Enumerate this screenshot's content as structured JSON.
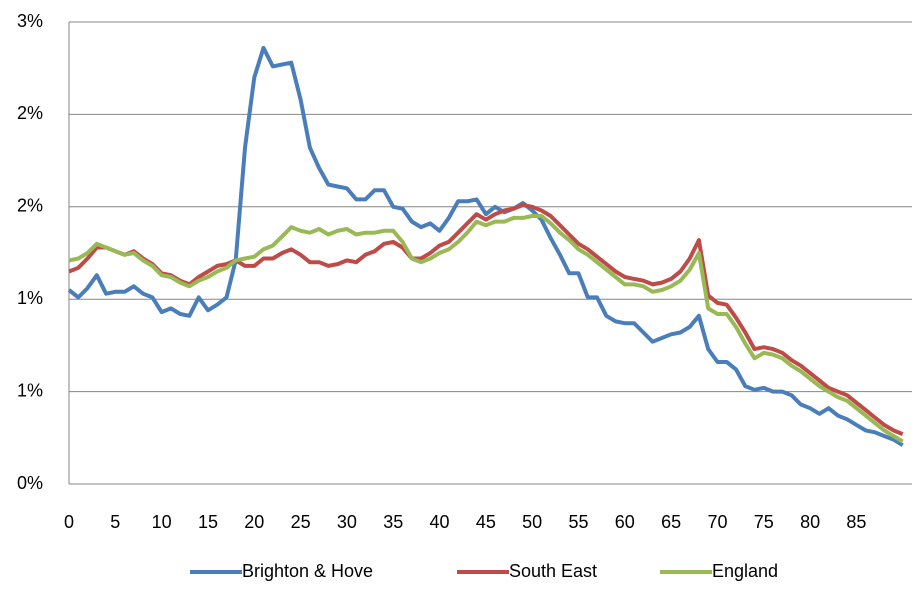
{
  "chart_data": {
    "type": "line",
    "x": [
      0,
      1,
      2,
      3,
      4,
      5,
      6,
      7,
      8,
      9,
      10,
      11,
      12,
      13,
      14,
      15,
      16,
      17,
      18,
      19,
      20,
      21,
      22,
      23,
      24,
      25,
      26,
      27,
      28,
      29,
      30,
      31,
      32,
      33,
      34,
      35,
      36,
      37,
      38,
      39,
      40,
      41,
      42,
      43,
      44,
      45,
      46,
      47,
      48,
      49,
      50,
      51,
      52,
      53,
      54,
      55,
      56,
      57,
      58,
      59,
      60,
      61,
      62,
      63,
      64,
      65,
      66,
      67,
      68,
      69,
      70,
      71,
      72,
      73,
      74,
      75,
      76,
      77,
      78,
      79,
      80,
      81,
      82,
      83,
      84,
      85,
      86,
      87,
      88,
      89,
      90
    ],
    "xlim": [
      0,
      91
    ],
    "xticks": [
      0,
      5,
      10,
      15,
      20,
      25,
      30,
      35,
      40,
      45,
      50,
      55,
      60,
      65,
      70,
      75,
      80,
      85
    ],
    "ylim": [
      0,
      2.5
    ],
    "yticks": [
      {
        "value": 0,
        "label": "0%"
      },
      {
        "value": 0.5,
        "label": "1%"
      },
      {
        "value": 1,
        "label": "1%"
      },
      {
        "value": 1.5,
        "label": "2%"
      },
      {
        "value": 2,
        "label": "2%"
      },
      {
        "value": 2.5,
        "label": "3%"
      }
    ],
    "grid": true,
    "legend": "bottom",
    "series": [
      {
        "name": "Brighton & Hove",
        "color": "#4a7ebb",
        "values": [
          1.05,
          1.01,
          1.06,
          1.13,
          1.03,
          1.04,
          1.04,
          1.07,
          1.03,
          1.01,
          0.93,
          0.95,
          0.92,
          0.91,
          1.01,
          0.94,
          0.97,
          1.01,
          1.21,
          1.82,
          2.2,
          2.36,
          2.26,
          2.27,
          2.28,
          2.08,
          1.82,
          1.71,
          1.62,
          1.61,
          1.6,
          1.54,
          1.54,
          1.59,
          1.59,
          1.5,
          1.49,
          1.42,
          1.39,
          1.41,
          1.37,
          1.44,
          1.53,
          1.53,
          1.54,
          1.46,
          1.5,
          1.47,
          1.49,
          1.52,
          1.48,
          1.43,
          1.33,
          1.24,
          1.14,
          1.14,
          1.01,
          1.01,
          0.91,
          0.88,
          0.87,
          0.87,
          0.82,
          0.77,
          0.79,
          0.81,
          0.82,
          0.85,
          0.91,
          0.73,
          0.66,
          0.66,
          0.62,
          0.53,
          0.51,
          0.52,
          0.5,
          0.5,
          0.48,
          0.43,
          0.41,
          0.38,
          0.41,
          0.37,
          0.35,
          0.32,
          0.29,
          0.28,
          0.26,
          0.24,
          0.21
        ]
      },
      {
        "name": "South East",
        "color": "#be4b48",
        "values": [
          1.15,
          1.17,
          1.22,
          1.28,
          1.28,
          1.26,
          1.24,
          1.26,
          1.22,
          1.19,
          1.14,
          1.13,
          1.1,
          1.08,
          1.12,
          1.15,
          1.18,
          1.19,
          1.21,
          1.18,
          1.18,
          1.22,
          1.22,
          1.25,
          1.27,
          1.24,
          1.2,
          1.2,
          1.18,
          1.19,
          1.21,
          1.2,
          1.24,
          1.26,
          1.3,
          1.31,
          1.28,
          1.22,
          1.22,
          1.25,
          1.29,
          1.31,
          1.36,
          1.41,
          1.46,
          1.43,
          1.46,
          1.48,
          1.49,
          1.51,
          1.5,
          1.48,
          1.45,
          1.4,
          1.35,
          1.3,
          1.27,
          1.23,
          1.19,
          1.15,
          1.12,
          1.11,
          1.1,
          1.08,
          1.09,
          1.11,
          1.15,
          1.22,
          1.32,
          1.02,
          0.98,
          0.97,
          0.9,
          0.82,
          0.73,
          0.74,
          0.73,
          0.71,
          0.67,
          0.64,
          0.6,
          0.56,
          0.52,
          0.5,
          0.48,
          0.44,
          0.4,
          0.36,
          0.32,
          0.29,
          0.27
        ]
      },
      {
        "name": "England",
        "color": "#98b954",
        "values": [
          1.21,
          1.22,
          1.25,
          1.3,
          1.28,
          1.26,
          1.24,
          1.25,
          1.21,
          1.18,
          1.13,
          1.12,
          1.09,
          1.07,
          1.1,
          1.12,
          1.15,
          1.17,
          1.21,
          1.22,
          1.23,
          1.27,
          1.29,
          1.34,
          1.39,
          1.37,
          1.36,
          1.38,
          1.35,
          1.37,
          1.38,
          1.35,
          1.36,
          1.36,
          1.37,
          1.37,
          1.31,
          1.22,
          1.2,
          1.22,
          1.25,
          1.27,
          1.31,
          1.36,
          1.42,
          1.4,
          1.42,
          1.42,
          1.44,
          1.44,
          1.45,
          1.45,
          1.41,
          1.36,
          1.32,
          1.27,
          1.24,
          1.2,
          1.16,
          1.12,
          1.08,
          1.08,
          1.07,
          1.04,
          1.05,
          1.07,
          1.1,
          1.16,
          1.25,
          0.95,
          0.92,
          0.92,
          0.85,
          0.76,
          0.68,
          0.71,
          0.7,
          0.68,
          0.64,
          0.61,
          0.57,
          0.53,
          0.5,
          0.47,
          0.45,
          0.41,
          0.37,
          0.33,
          0.29,
          0.26,
          0.23
        ]
      }
    ]
  }
}
